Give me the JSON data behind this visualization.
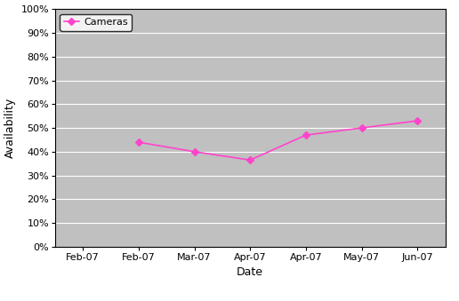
{
  "x_labels": [
    "Feb-07",
    "Feb-07",
    "Mar-07",
    "Apr-07",
    "Apr-07",
    "May-07",
    "Jun-07"
  ],
  "x_positions": [
    0,
    1,
    2,
    3,
    4,
    5,
    6
  ],
  "y_values": [
    null,
    0.44,
    0.4,
    0.365,
    0.47,
    0.5,
    0.53
  ],
  "line_color": "#FF44CC",
  "marker_style": "D",
  "marker_size": 4,
  "legend_label": "Cameras",
  "ylabel": "Availability",
  "xlabel": "Date",
  "ylim": [
    0.0,
    1.0
  ],
  "ytick_values": [
    0.0,
    0.1,
    0.2,
    0.3,
    0.4,
    0.5,
    0.6,
    0.7,
    0.8,
    0.9,
    1.0
  ],
  "figure_bg_color": "#FFFFFF",
  "plot_bg_color": "#C0C0C0",
  "grid_color": "#FFFFFF",
  "figsize": [
    5.16,
    3.39
  ],
  "dpi": 100
}
